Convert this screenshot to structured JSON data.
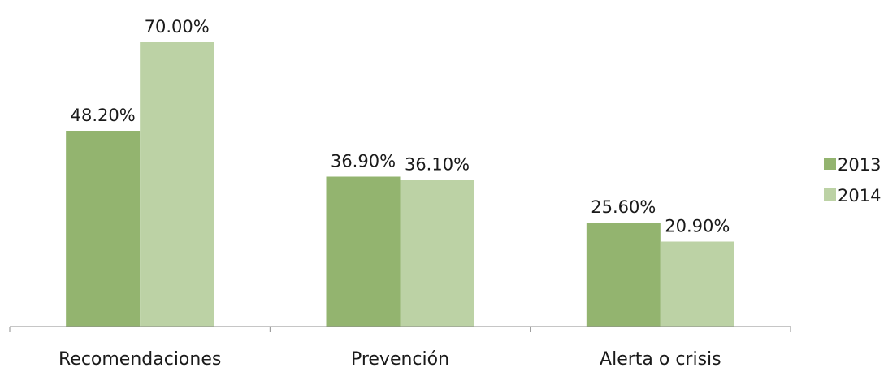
{
  "chart_data": {
    "type": "bar",
    "categories": [
      "Recomendaciones",
      "Prevención",
      "Alerta o crisis"
    ],
    "series": [
      {
        "name": "2013",
        "color": "#93b46f",
        "values": [
          48.2,
          36.9,
          25.6
        ],
        "labels": [
          "48.20%",
          "36.90%",
          "25.60%"
        ]
      },
      {
        "name": "2014",
        "color": "#bcd2a5",
        "values": [
          70.0,
          36.1,
          20.9
        ],
        "labels": [
          "70.00%",
          "36.10%",
          "20.90%"
        ]
      }
    ],
    "ylim": [
      0,
      80
    ],
    "grid": false,
    "legend_position": "right"
  }
}
